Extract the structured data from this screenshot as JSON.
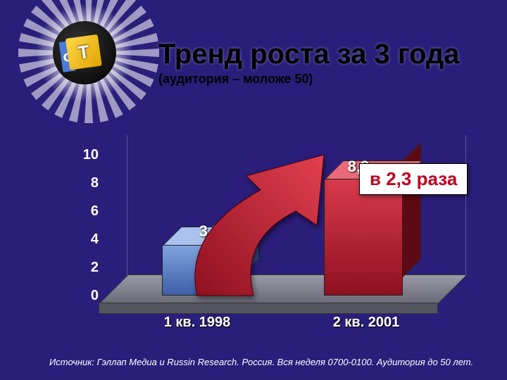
{
  "background_color": "#2a1e7a",
  "logo": {
    "letters": [
      "c",
      "T",
      "c"
    ]
  },
  "title": "Тренд роста за 3 года",
  "subtitle": "(аудитория – моложе 50)",
  "chart": {
    "type": "bar",
    "ylim": [
      0,
      10
    ],
    "ytick_step": 2,
    "yticks": [
      "0",
      "2",
      "4",
      "6",
      "8",
      "10"
    ],
    "grid_color": "rgba(255,255,255,0.25)",
    "floor_color_top": "#9a9aa5",
    "floor_color_bottom": "#6a6a78",
    "bars": [
      {
        "category": "1 кв. 1998",
        "value": 3.5,
        "label": "3,5",
        "front_color_top": "#7fa3df",
        "front_color_bottom": "#3f5ea8",
        "top_color": "#a9c3ee",
        "side_color": "#2e4680"
      },
      {
        "category": "2 кв. 2001",
        "value": 8.2,
        "label": "8,2",
        "front_color_top": "#d83a4c",
        "front_color_bottom": "#8e1020",
        "top_color": "#e86a78",
        "side_color": "#5e0a14"
      }
    ],
    "label_fontsize": 22,
    "axis_fontsize": 20,
    "text_color": "#ffffff"
  },
  "callout": {
    "text": "в 2,3 раза",
    "text_color": "#c00020",
    "bg_color": "#ffffff",
    "fontsize": 26
  },
  "arrow": {
    "fill_top": "#e24050",
    "fill_bottom": "#8e1020"
  },
  "source": "Источник: Гэллап Медиа и Russin Research. Россия. Вся неделя 0700-0100. Аудитория до 50 лет."
}
